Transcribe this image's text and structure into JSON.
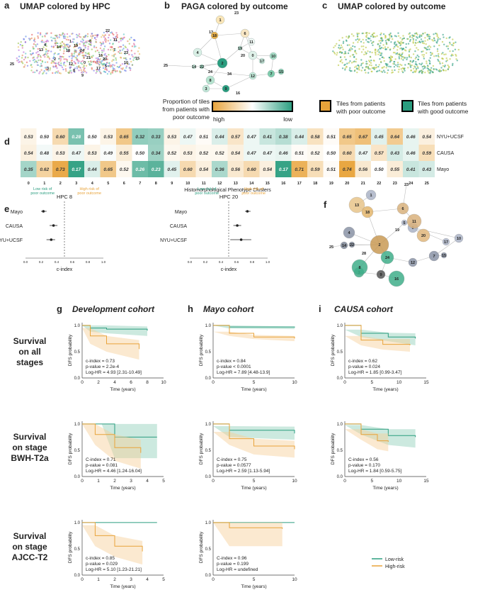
{
  "panel_a": {
    "letter": "a",
    "title": "UMAP colored by HPC",
    "cluster_labels": [
      "0",
      "1",
      "2",
      "3",
      "4",
      "5",
      "6",
      "7",
      "8",
      "9",
      "10",
      "11",
      "12",
      "13",
      "14",
      "15",
      "16",
      "17",
      "18",
      "19",
      "20",
      "21",
      "22",
      "23",
      "24",
      "25"
    ]
  },
  "panel_b": {
    "letter": "b",
    "title": "PAGA colored by outcome",
    "legend_title": [
      "Proportion of tiles",
      "from patients with",
      "poor outcome"
    ],
    "legend_high": "high",
    "legend_low": "low"
  },
  "panel_c": {
    "letter": "c",
    "title": "UMAP colored by outcome",
    "legend_poor": [
      "Tiles from patients",
      "with poor outcome"
    ],
    "legend_good": [
      "Tiles from patients",
      "with good outcome"
    ]
  },
  "panel_d": {
    "letter": "d",
    "xlabel": "Histomorphological Phenotype Clusters",
    "rows": [
      "NYU+UCSF",
      "CAUSA",
      "Mayo"
    ],
    "columns": [
      "0",
      "1",
      "2",
      "3",
      "4",
      "5",
      "6",
      "7",
      "8",
      "9",
      "10",
      "11",
      "12",
      "13",
      "14",
      "15",
      "16",
      "17",
      "18",
      "19",
      "20",
      "21",
      "22",
      "23",
      "24",
      "25"
    ],
    "values": [
      [
        "0.53",
        "0.50",
        "0.60",
        "0.28",
        "0.50",
        "0.53",
        "0.65",
        "0.32",
        "0.33",
        "0.53",
        "0.47",
        "0.51",
        "0.44",
        "0.57",
        "0.47",
        "0.41",
        "0.38",
        "0.44",
        "0.58",
        "0.51",
        "0.65",
        "0.67",
        "0.45",
        "0.64",
        "0.46",
        "0.54"
      ],
      [
        "0.54",
        "0.48",
        "0.53",
        "0.47",
        "0.53",
        "0.49",
        "0.55",
        "0.50",
        "0.34",
        "0.52",
        "0.53",
        "0.52",
        "0.52",
        "0.54",
        "0.47",
        "0.47",
        "0.46",
        "0.51",
        "0.52",
        "0.50",
        "0.60",
        "0.47",
        "0.57",
        "0.43",
        "0.46",
        "0.59"
      ],
      [
        "0.35",
        "0.62",
        "0.73",
        "0.17",
        "0.44",
        "0.65",
        "0.52",
        "0.26",
        "0.23",
        "0.45",
        "0.60",
        "0.54",
        "0.36",
        "0.56",
        "0.60",
        "0.54",
        "0.17",
        "0.71",
        "0.59",
        "0.51",
        "0.74",
        "0.56",
        "0.50",
        "0.55",
        "0.41",
        "0.43"
      ]
    ]
  },
  "panel_e": {
    "letter": "e",
    "left": {
      "title": "HPC 8",
      "low_risk": [
        "Low risk of",
        "poor outcome"
      ],
      "high_risk": [
        "High risk of",
        "poor outcome"
      ],
      "rows": [
        "Mayo",
        "CAUSA",
        "NYU+UCSF"
      ],
      "estimates": [
        0.23,
        0.36,
        0.33
      ],
      "ci_low": [
        0.2,
        0.31,
        0.27
      ],
      "ci_high": [
        0.27,
        0.41,
        0.38
      ]
    },
    "right": {
      "title": "HPC 20",
      "low_risk": [
        "Low risk of",
        "poor outcome"
      ],
      "high_risk": [
        "High risk of",
        "poor outcome"
      ],
      "rows": [
        "Mayo",
        "CAUSA",
        "NYU+UCSF"
      ],
      "estimates": [
        0.74,
        0.61,
        0.66
      ],
      "ci_low": [
        0.71,
        0.56,
        0.52
      ],
      "ci_high": [
        0.78,
        0.66,
        0.79
      ]
    },
    "ticks": [
      "0.0",
      "0.2",
      "0.4",
      "0.6",
      "0.8",
      "1.0"
    ],
    "xlabel": "c-index"
  },
  "panel_f": {
    "letter": "f",
    "node_labels": [
      "0",
      "1",
      "2",
      "3",
      "4",
      "5",
      "6",
      "7",
      "8",
      "9",
      "10",
      "11",
      "12",
      "13",
      "14",
      "15",
      "16",
      "17",
      "18",
      "19",
      "20",
      "21",
      "22",
      "23",
      "24",
      "25"
    ]
  },
  "panel_ghi": {
    "letters": [
      "g",
      "h",
      "i"
    ],
    "cohorts": [
      "Development cohort",
      "Mayo cohort",
      "CAUSA cohort"
    ],
    "row_labels": [
      [
        "Survival",
        "on all",
        "stages"
      ],
      [
        "Survival",
        "on stage",
        "BWH-T2a"
      ],
      [
        "Survival",
        "on stage",
        "AJCC-T2"
      ]
    ],
    "ylabel": "DFS probability",
    "xlabel": "Time (years)",
    "yticks": [
      "0.0",
      "0.5",
      "1.0"
    ],
    "xticks_dev": [
      "0",
      "2",
      "4",
      "6",
      "8",
      "10"
    ],
    "xticks_dev_s": [
      "0",
      "1",
      "2",
      "3",
      "4",
      "5"
    ],
    "xticks_mayo": [
      "0",
      "5",
      "10"
    ],
    "xticks_causa": [
      "0",
      "5",
      "10",
      "15"
    ],
    "stats": [
      [
        [
          "c-index = 0.73",
          "p-value = 2.2e-4",
          "Log-HR = 4.93 [2.31-10.49]"
        ],
        [
          "c-index = 0.84",
          "p-value < 0.0001",
          "Log-HR = 7.89 [4.48-13.9]"
        ],
        [
          "c-index = 0.62",
          "p-value = 0.024",
          "Log-HR = 1.85 [0.99-3.47]"
        ]
      ],
      [
        [
          "C-index = 0.71",
          "p-value = 0.081",
          "Log-HR = 4.46 [1.24-16.04]"
        ],
        [
          "C-index = 0.75",
          "p-value = 0.0577",
          "Log-HR = 2.59 [1.13-5.94]"
        ],
        [
          "C-index = 0.56",
          "p-value = 0.170",
          "Log-HR = 1.84 [0.59-5.75]"
        ]
      ],
      [
        [
          "c-index = 0.85",
          "p-value = 0.029",
          "Log-HR = 5.10 [1.23-21.21]"
        ],
        [
          "C-index = 0.96",
          "p-value = 0.199",
          "Log-HR = undefined"
        ]
      ]
    ],
    "legend": [
      "Low-risk",
      "High-risk"
    ]
  },
  "colors": {
    "teal": "#2a9d7f",
    "orange": "#e8a33a",
    "teal_fill": "#8fcfb8",
    "orange_fill": "#f6cf96"
  }
}
